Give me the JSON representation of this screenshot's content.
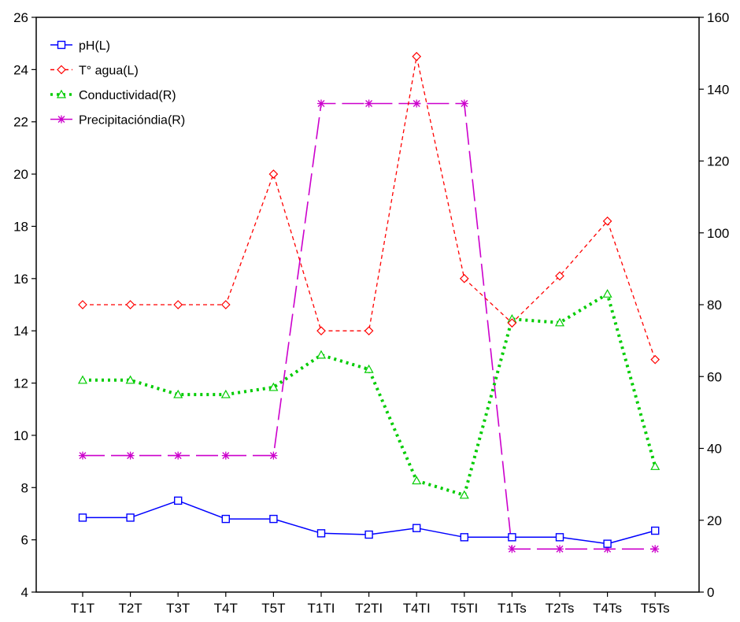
{
  "chart_data": {
    "type": "line",
    "title": "",
    "xlabel": "",
    "ylabel_left": "",
    "ylabel_right": "",
    "categories": [
      "T1T",
      "T2T",
      "T3T",
      "T4T",
      "T5T",
      "T1TI",
      "T2TI",
      "T4TI",
      "T5TI",
      "T1Ts",
      "T2Ts",
      "T4Ts",
      "T5Ts"
    ],
    "y_left": {
      "range": [
        4,
        26
      ],
      "ticks": [
        "4",
        "6",
        "8",
        "10",
        "12",
        "14",
        "16",
        "18",
        "20",
        "22",
        "24",
        "26"
      ]
    },
    "y_right": {
      "range": [
        0,
        160
      ],
      "ticks": [
        "0",
        "20",
        "40",
        "60",
        "80",
        "100",
        "120",
        "140",
        "160"
      ]
    },
    "grid": false,
    "legend_position": "top-left",
    "series": [
      {
        "name": "pH(L)",
        "axis": "left",
        "color": "#0000ff",
        "line_style": "solid",
        "marker": "square",
        "values": [
          6.85,
          6.85,
          7.5,
          6.8,
          6.8,
          6.25,
          6.2,
          6.45,
          6.1,
          6.1,
          6.1,
          5.85,
          6.35
        ]
      },
      {
        "name": "T° agua(L)",
        "axis": "left",
        "color": "#ff0000",
        "line_style": "short-dash",
        "marker": "diamond",
        "values": [
          15.0,
          15.0,
          15.0,
          15.0,
          20.0,
          14.0,
          14.0,
          24.5,
          16.0,
          14.3,
          16.1,
          18.2,
          12.9
        ]
      },
      {
        "name": "Conductividad(R)",
        "axis": "right",
        "color": "#00cc00",
        "line_style": "dotted",
        "marker": "triangle",
        "values": [
          59,
          59,
          55,
          55,
          57,
          66,
          62,
          31,
          27,
          76,
          75,
          83,
          35
        ]
      },
      {
        "name": "Precipitacióndia(R)",
        "axis": "right",
        "color": "#cc00cc",
        "line_style": "long-dash",
        "marker": "asterisk",
        "values": [
          38,
          38,
          38,
          38,
          38,
          136,
          136,
          136,
          136,
          12,
          12,
          12,
          12
        ]
      }
    ]
  }
}
